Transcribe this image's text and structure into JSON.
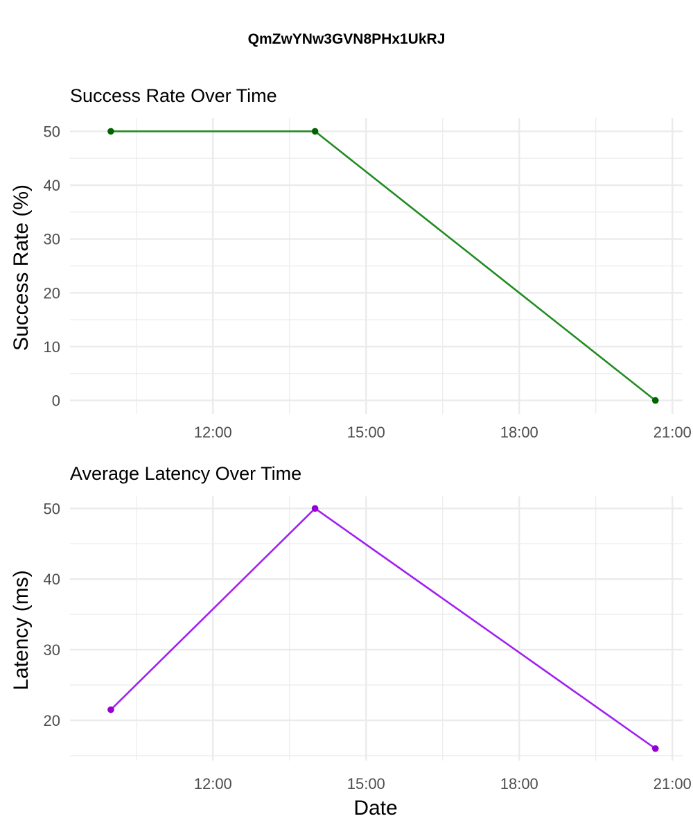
{
  "figure": {
    "title": "QmZwYNw3GVN8PHx1UkRJ",
    "xlabel": "Date"
  },
  "chart_data": [
    {
      "type": "line",
      "title": "Success Rate Over Time",
      "xlabel": "",
      "ylabel": "Success Rate (%)",
      "x": [
        "10:00",
        "14:00",
        "20:40"
      ],
      "series": [
        {
          "values": [
            50,
            50,
            0
          ],
          "color": "#228b22",
          "point_color": "#006400"
        }
      ],
      "xlim": [
        "09:12",
        "21:12"
      ],
      "x_ticks": [
        "12:00",
        "15:00",
        "18:00",
        "21:00"
      ],
      "ylim": [
        -2.5,
        52.5
      ],
      "y_ticks": [
        0,
        10,
        20,
        30,
        40,
        50
      ],
      "grid": true
    },
    {
      "type": "line",
      "title": "Average Latency Over Time",
      "xlabel": "Date",
      "ylabel": "Latency (ms)",
      "x": [
        "10:00",
        "14:00",
        "20:40"
      ],
      "series": [
        {
          "values": [
            21.5,
            50,
            16
          ],
          "color": "#a020f0",
          "point_color": "#9400d3"
        }
      ],
      "xlim": [
        "09:12",
        "21:12"
      ],
      "x_ticks": [
        "12:00",
        "15:00",
        "18:00",
        "21:00"
      ],
      "ylim": [
        14.3,
        51.7
      ],
      "y_ticks": [
        20,
        30,
        40,
        50
      ],
      "grid": true
    }
  ]
}
